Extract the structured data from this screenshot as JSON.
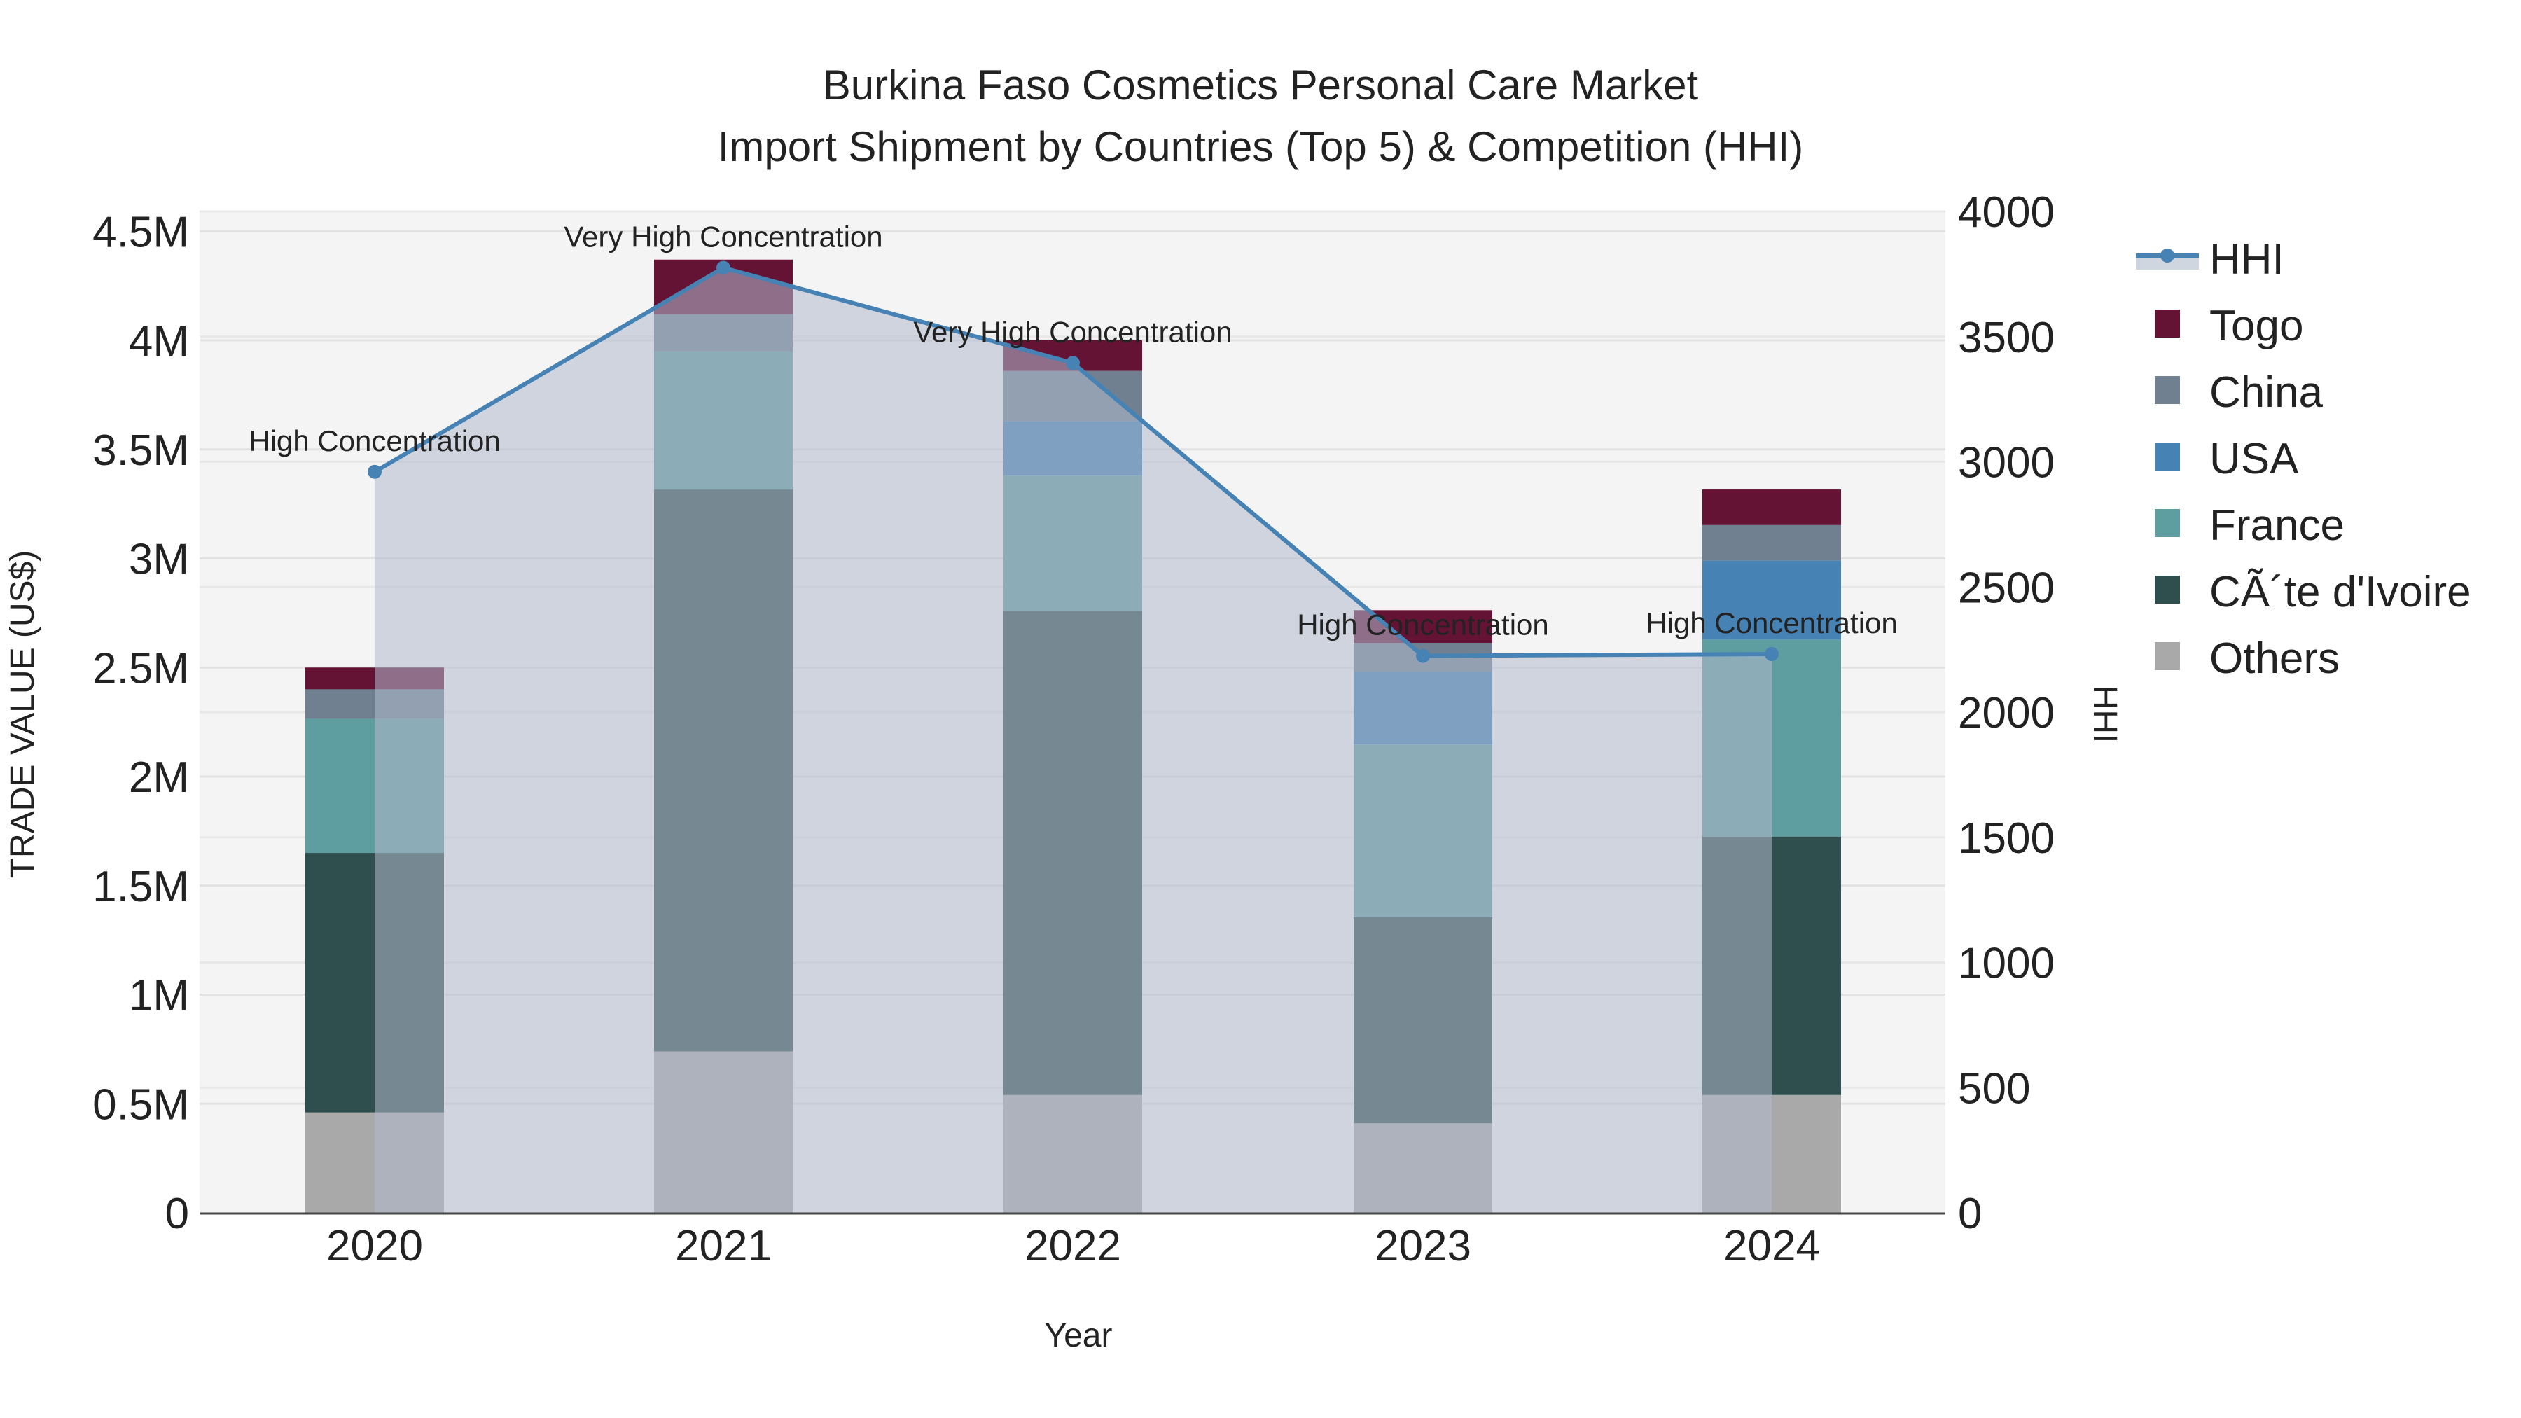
{
  "title": {
    "line1": "Burkina Faso Cosmetics Personal Care Market",
    "line2": "Import Shipment by Countries (Top 5) & Competition (HHI)"
  },
  "axes": {
    "x_label": "Year",
    "y_left_label": "TRADE VALUE (US$)",
    "y_right_label": "HHI",
    "y_left_ticks": [
      "0",
      "0.5M",
      "1M",
      "1.5M",
      "2M",
      "2.5M",
      "3M",
      "3.5M",
      "4M",
      "4.5M"
    ],
    "y_right_ticks": [
      "0",
      "500",
      "1000",
      "1500",
      "2000",
      "2500",
      "3000",
      "3500",
      "4000"
    ]
  },
  "legend": [
    {
      "label": "HHI",
      "type": "line",
      "color": "#4682B4"
    },
    {
      "label": "Togo",
      "type": "box",
      "color": "#641335"
    },
    {
      "label": "China",
      "type": "box",
      "color": "#708090"
    },
    {
      "label": "USA",
      "type": "box",
      "color": "#4682B4"
    },
    {
      "label": "France",
      "type": "box",
      "color": "#5F9EA0"
    },
    {
      "label": "CÃ´te d'Ivoire",
      "type": "box",
      "color": "#2F4F4F"
    },
    {
      "label": "Others",
      "type": "box",
      "color": "#A9A9A9"
    }
  ],
  "chart_data": {
    "type": "bar",
    "stacked": true,
    "title": "Burkina Faso Cosmetics Personal Care Market Import Shipment by Countries (Top 5) & Competition (HHI)",
    "xlabel": "Year",
    "ylabel": "TRADE VALUE (US$)",
    "y2label": "HHI",
    "categories": [
      "2020",
      "2021",
      "2022",
      "2023",
      "2024"
    ],
    "ylim": [
      0,
      4500000
    ],
    "y2lim": [
      0,
      4000
    ],
    "grid": true,
    "legend_position": "right",
    "series": [
      {
        "name": "Others",
        "color": "#A9A9A9",
        "values": [
          460000,
          740000,
          540000,
          410000,
          540000
        ]
      },
      {
        "name": "CÃ´te d'Ivoire",
        "color": "#2F4F4F",
        "values": [
          1190000,
          2576000,
          2220000,
          945000,
          1185000
        ]
      },
      {
        "name": "France",
        "color": "#5F9EA0",
        "values": [
          615000,
          634000,
          620000,
          792000,
          903000
        ]
      },
      {
        "name": "USA",
        "color": "#4682B4",
        "values": [
          0,
          0,
          250000,
          333000,
          362000
        ]
      },
      {
        "name": "China",
        "color": "#708090",
        "values": [
          135000,
          170000,
          230000,
          133000,
          163000
        ]
      },
      {
        "name": "Togo",
        "color": "#641335",
        "values": [
          100000,
          250000,
          140000,
          150000,
          163000
        ]
      }
    ],
    "line_series": {
      "name": "HHI",
      "axis": "right",
      "color": "#4682B4",
      "values": [
        2960,
        3775,
        3395,
        2225,
        2232
      ],
      "annotations": [
        "High Concentration",
        "Very High Concentration",
        "Very High Concentration",
        "High Concentration",
        "High Concentration"
      ]
    }
  }
}
